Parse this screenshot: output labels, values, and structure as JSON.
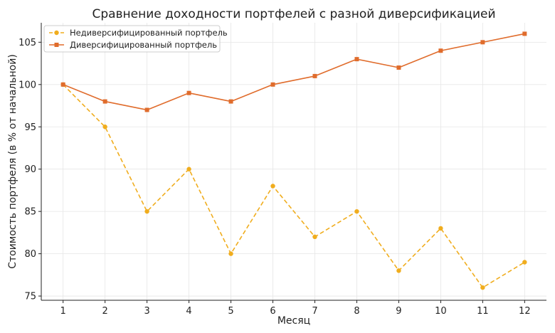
{
  "chart_data": {
    "type": "line",
    "title": "Сравнение доходности портфелей с разной диверсификацией",
    "xlabel": "Месяц",
    "ylabel": "Стоимость портфеля (в % от начальной)",
    "x": [
      1,
      2,
      3,
      4,
      5,
      6,
      7,
      8,
      9,
      10,
      11,
      12
    ],
    "xlim": [
      0.48,
      12.52
    ],
    "ylim": [
      74.5,
      107.3
    ],
    "yticks": [
      75,
      80,
      85,
      90,
      95,
      100,
      105
    ],
    "grid": true,
    "legend_position": "top-left",
    "series": [
      {
        "name": "Недиверсифицированный портфель",
        "values": [
          100,
          95,
          85,
          90,
          80,
          88,
          82,
          85,
          78,
          83,
          76,
          79
        ],
        "color": "#f0ad1e",
        "line_style": "dashed",
        "marker": "circle"
      },
      {
        "name": "Диверсифицированный портфель",
        "values": [
          100,
          98,
          97,
          99,
          98,
          100,
          101,
          103,
          102,
          104,
          105,
          106
        ],
        "color": "#e06c2c",
        "line_style": "solid",
        "marker": "square"
      }
    ]
  }
}
